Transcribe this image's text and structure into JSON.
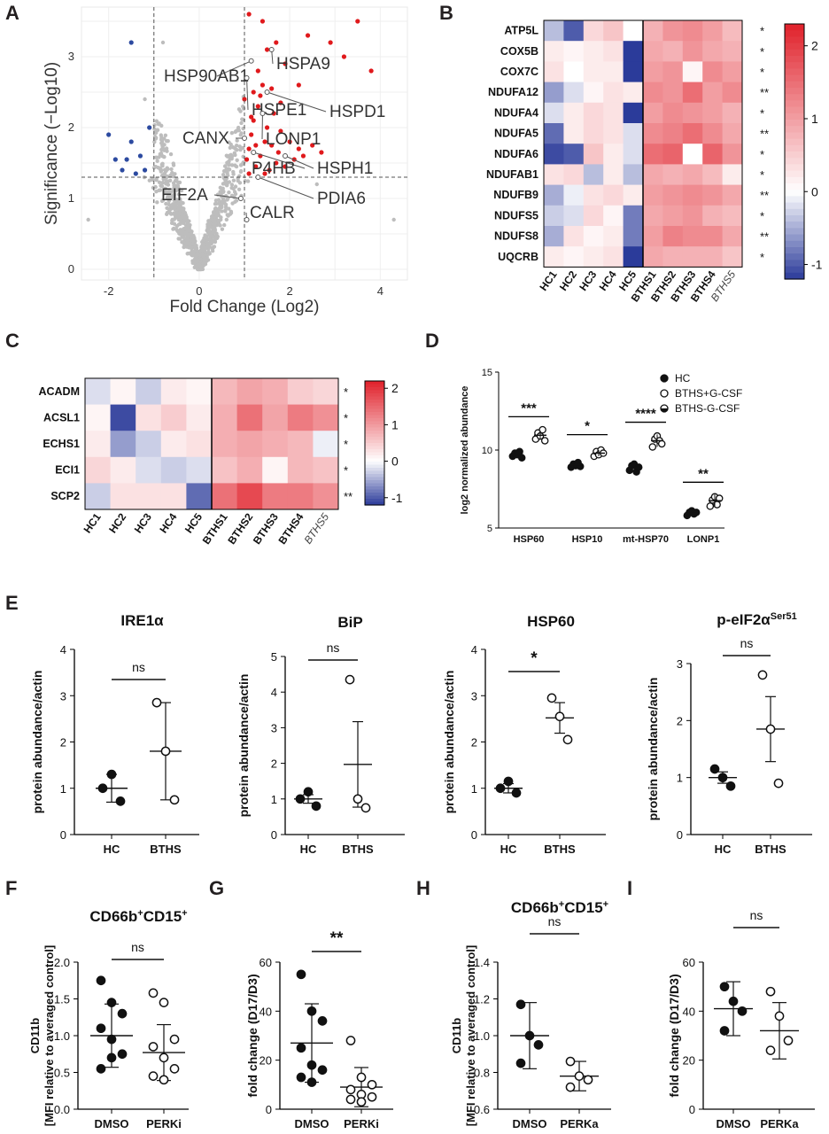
{
  "panel_letters": {
    "A": "A",
    "B": "B",
    "C": "C",
    "D": "D",
    "E": "E",
    "F": "F",
    "G": "G",
    "H": "H",
    "I": "I"
  },
  "colors": {
    "up": "#e0191c",
    "down": "#2c4aa0",
    "ns": "#bdbdbd",
    "heat_low": "#2b3b9a",
    "heat_mid": "#ffffff",
    "heat_high": "#e0202a",
    "text": "#231f20"
  },
  "chart_data": [
    {
      "id": "A",
      "type": "scatter",
      "title": "",
      "xlabel": "Fold Change (Log2)",
      "ylabel": "Significance (−Log10)",
      "xlim": [
        -2.6,
        4.6
      ],
      "ylim": [
        -0.15,
        3.7
      ],
      "xticks": [
        "-2",
        "0",
        "2",
        "4"
      ],
      "yticks": [
        "0",
        "1",
        "2",
        "3"
      ],
      "thresholds": {
        "fc": [
          -1,
          1
        ],
        "sig": 1.3
      },
      "grid": true,
      "up_points": [
        [
          1.05,
          1.55
        ],
        [
          1.1,
          1.7
        ],
        [
          1.15,
          1.9
        ],
        [
          1.2,
          2.1
        ],
        [
          1.25,
          1.45
        ],
        [
          1.3,
          2.3
        ],
        [
          1.35,
          1.6
        ],
        [
          1.4,
          2.6
        ],
        [
          1.45,
          1.8
        ],
        [
          1.5,
          2.0
        ],
        [
          1.55,
          1.4
        ],
        [
          1.6,
          1.75
        ],
        [
          1.65,
          2.2
        ],
        [
          1.7,
          1.5
        ],
        [
          1.75,
          1.65
        ],
        [
          1.8,
          1.95
        ],
        [
          1.9,
          1.45
        ],
        [
          2.0,
          1.8
        ],
        [
          2.1,
          1.55
        ],
        [
          2.2,
          1.7
        ],
        [
          2.3,
          1.6
        ],
        [
          2.5,
          1.75
        ],
        [
          2.7,
          1.65
        ],
        [
          1.2,
          2.5
        ],
        [
          1.3,
          2.8
        ],
        [
          1.5,
          3.1
        ],
        [
          1.7,
          3.2
        ],
        [
          1.9,
          2.9
        ],
        [
          2.2,
          2.6
        ],
        [
          2.4,
          3.3
        ],
        [
          2.9,
          3.2
        ],
        [
          3.2,
          3.0
        ],
        [
          3.5,
          3.5
        ],
        [
          1.1,
          3.8
        ],
        [
          1.4,
          3.5
        ],
        [
          1.0,
          2.4
        ],
        [
          1.15,
          2.15
        ],
        [
          1.25,
          1.75
        ],
        [
          1.35,
          2.45
        ],
        [
          1.6,
          2.55
        ],
        [
          1.8,
          2.35
        ],
        [
          1.1,
          1.35
        ],
        [
          1.45,
          1.35
        ],
        [
          3.8,
          2.8
        ]
      ],
      "down_points": [
        [
          -1.5,
          3.2
        ],
        [
          -2.0,
          1.9
        ],
        [
          -1.7,
          1.4
        ],
        [
          -1.5,
          1.8
        ],
        [
          -1.3,
          1.6
        ],
        [
          -1.2,
          1.4
        ],
        [
          -1.6,
          1.55
        ],
        [
          -1.85,
          1.55
        ],
        [
          -1.1,
          2.0
        ],
        [
          -1.4,
          1.35
        ]
      ],
      "labels": [
        {
          "text": "HSP90AB1",
          "tx": "hsp90ab1",
          "x": 1.15,
          "y": 2.94
        },
        {
          "text": "HSPA9",
          "tx": "hspa9",
          "x": 1.6,
          "y": 3.1
        },
        {
          "text": "HSPE1",
          "tx": "hspe1",
          "x": 1.05,
          "y": 2.7
        },
        {
          "text": "HSPD1",
          "tx": "hspd1",
          "x": 1.5,
          "y": 2.5
        },
        {
          "text": "CANX",
          "tx": "canx",
          "x": 1.0,
          "y": 1.85
        },
        {
          "text": "LONP1",
          "tx": "lonp1",
          "x": 1.4,
          "y": 2.2
        },
        {
          "text": "P4HB",
          "tx": "p4hb",
          "x": 1.2,
          "y": 1.65
        },
        {
          "text": "HSPH1",
          "tx": "hsph1",
          "x": 1.9,
          "y": 1.6
        },
        {
          "text": "EIF2A",
          "tx": "eif2a",
          "x": 0.92,
          "y": 1.0
        },
        {
          "text": "PDIA6",
          "tx": "pdia6",
          "x": 1.3,
          "y": 1.3
        },
        {
          "text": "CALR",
          "tx": "calr",
          "x": 1.05,
          "y": 0.7
        }
      ]
    },
    {
      "id": "B",
      "type": "heatmap",
      "rows": [
        "ATP5L",
        "COX5B",
        "COX7C",
        "NDUFA12",
        "NDUFA4",
        "NDUFA5",
        "NDUFA6",
        "NDUFAB1",
        "NDUFB9",
        "NDUFS5",
        "NDUFS8",
        "UQCRB"
      ],
      "cols": [
        "HC1",
        "HC2",
        "HC3",
        "HC4",
        "HC5",
        "BTHS1",
        "BTHS2",
        "BTHS3",
        "BTHS4",
        "BTHS5"
      ],
      "sig": [
        "*",
        "*",
        "*",
        "**",
        "*",
        "**",
        "*",
        "*",
        "**",
        "*",
        "**",
        "*"
      ],
      "values": [
        [
          -0.4,
          -1.0,
          0.4,
          0.6,
          0.0,
          0.8,
          1.1,
          1.2,
          1.0,
          0.7
        ],
        [
          0.2,
          0.1,
          0.2,
          0.3,
          -1.2,
          0.9,
          0.8,
          1.1,
          0.9,
          0.8
        ],
        [
          0.3,
          0.0,
          0.2,
          0.2,
          -1.3,
          1.0,
          1.1,
          0.1,
          1.2,
          1.0
        ],
        [
          -0.6,
          -0.2,
          0.1,
          0.3,
          0.2,
          1.2,
          1.1,
          1.5,
          1.0,
          1.2
        ],
        [
          -0.2,
          0.2,
          0.4,
          0.3,
          -1.2,
          1.0,
          1.2,
          1.1,
          1.0,
          0.8
        ],
        [
          -0.9,
          0.2,
          0.4,
          0.3,
          -0.2,
          1.2,
          1.3,
          1.5,
          1.2,
          0.9
        ],
        [
          -1.1,
          -1.0,
          0.6,
          0.2,
          -0.2,
          1.5,
          1.6,
          0.0,
          1.6,
          1.1
        ],
        [
          0.3,
          0.4,
          -0.4,
          0.2,
          -0.4,
          0.9,
          0.8,
          0.9,
          0.7,
          0.2
        ],
        [
          -0.5,
          -0.1,
          0.3,
          0.4,
          0.2,
          1.0,
          1.1,
          1.2,
          1.1,
          0.9
        ],
        [
          -0.3,
          -0.2,
          0.4,
          0.1,
          -0.8,
          0.9,
          1.0,
          1.1,
          0.8,
          0.7
        ],
        [
          -0.5,
          0.3,
          0.1,
          0.2,
          -0.8,
          1.0,
          1.3,
          1.2,
          1.2,
          0.9
        ],
        [
          0.2,
          0.1,
          0.2,
          0.3,
          -1.2,
          0.9,
          0.8,
          0.8,
          0.8,
          0.6
        ]
      ],
      "colorbar_ticks": [
        "2",
        "1",
        "0",
        "-1"
      ],
      "vmin": -1.2,
      "vmax": 2.3
    },
    {
      "id": "C",
      "type": "heatmap",
      "rows": [
        "ACADM",
        "ACSL1",
        "ECHS1",
        "ECI1",
        "SCP2"
      ],
      "cols": [
        "HC1",
        "HC2",
        "HC3",
        "HC4",
        "HC5",
        "BTHS1",
        "BTHS2",
        "BTHS3",
        "BTHS4",
        "BTHS5"
      ],
      "sig": [
        "*",
        "*",
        "*",
        "*",
        "**"
      ],
      "values": [
        [
          -0.2,
          0.1,
          -0.3,
          0.2,
          0.1,
          0.7,
          0.9,
          0.8,
          0.5,
          0.4
        ],
        [
          0.1,
          -1.1,
          0.3,
          0.5,
          0.2,
          0.8,
          1.4,
          0.9,
          1.3,
          1.1
        ],
        [
          0.2,
          -0.6,
          -0.3,
          0.2,
          0.3,
          0.8,
          0.9,
          0.8,
          0.7,
          -0.1
        ],
        [
          0.4,
          0.2,
          -0.2,
          -0.3,
          -0.2,
          0.6,
          0.8,
          0.1,
          0.7,
          0.6
        ],
        [
          -0.3,
          0.3,
          0.3,
          0.3,
          -0.9,
          1.4,
          1.8,
          1.3,
          1.3,
          1.1
        ]
      ],
      "colorbar_ticks": [
        "2",
        "1",
        "0",
        "-1"
      ],
      "vmin": -1.2,
      "vmax": 2.2
    },
    {
      "id": "D",
      "type": "scatter",
      "ylabel": "log2 normalized abundance",
      "ylim": [
        5,
        15
      ],
      "yticks": [
        "5",
        "10",
        "15"
      ],
      "categories": [
        "HSP60",
        "HSP10",
        "mt-HSP70",
        "LONP1"
      ],
      "legend": [
        "HC",
        "BTHS+G-CSF",
        "BTHS-G-CSF"
      ],
      "significance": [
        "***",
        "*",
        "****",
        "**"
      ],
      "groups": [
        {
          "cat": "HSP60",
          "hc": [
            9.6,
            9.8,
            9.7,
            9.9,
            9.5
          ],
          "hc_mean": 9.7,
          "hc_sd": 0.15,
          "b": [
            10.7,
            11.1,
            10.9,
            11.3,
            10.6
          ],
          "b_mean": 10.95,
          "b_sd": 0.3
        },
        {
          "cat": "HSP10",
          "hc": [
            8.9,
            9.1,
            9.0,
            9.2,
            8.95
          ],
          "hc_mean": 9.05,
          "hc_sd": 0.12,
          "b": [
            9.6,
            9.9,
            9.7,
            10.0,
            9.8
          ],
          "b_mean": 9.8,
          "b_sd": 0.2
        },
        {
          "cat": "mt-HSP70",
          "hc": [
            8.7,
            9.0,
            9.1,
            8.6,
            8.9
          ],
          "hc_mean": 8.85,
          "hc_sd": 0.35,
          "b": [
            10.2,
            10.7,
            10.9,
            10.6,
            10.4
          ],
          "b_mean": 10.6,
          "b_sd": 0.4
        },
        {
          "cat": "LONP1",
          "hc": [
            5.8,
            6.0,
            6.1,
            5.9,
            6.0
          ],
          "hc_mean": 5.95,
          "hc_sd": 0.15,
          "b": [
            6.4,
            6.8,
            7.0,
            6.5,
            6.9
          ],
          "b_mean": 6.75,
          "b_sd": 0.4
        }
      ]
    },
    {
      "id": "E1",
      "type": "scatter",
      "title": "IRE1α",
      "ylabel": "protein abundance/actin",
      "ylim": [
        0,
        4
      ],
      "yticks": [
        "0",
        "1",
        "2",
        "3",
        "4"
      ],
      "categories": [
        "HC",
        "BTHS"
      ],
      "sig": "ns",
      "hc": [
        1.0,
        1.3,
        0.72
      ],
      "hc_mean": 1.0,
      "hc_err": 0.3,
      "bt": [
        2.85,
        1.8,
        0.75
      ],
      "bt_mean": 1.8,
      "bt_err": 1.05
    },
    {
      "id": "E2",
      "type": "scatter",
      "title": "BiP",
      "ylabel": "protein abundance/actin",
      "ylim": [
        0,
        5
      ],
      "yticks": [
        "0",
        "1",
        "2",
        "3",
        "4",
        "5"
      ],
      "categories": [
        "HC",
        "BTHS"
      ],
      "sig": "ns",
      "hc": [
        1.0,
        1.2,
        0.8
      ],
      "hc_mean": 1.0,
      "hc_err": 0.12,
      "bt": [
        4.35,
        1.0,
        0.75
      ],
      "bt_mean": 1.97,
      "bt_err": 1.2
    },
    {
      "id": "E3",
      "type": "scatter",
      "title": "HSP60",
      "ylabel": "protein abundance/actin",
      "ylim": [
        0,
        4
      ],
      "yticks": [
        "0",
        "1",
        "2",
        "3",
        "4"
      ],
      "categories": [
        "HC",
        "BTHS"
      ],
      "sig": "*",
      "hc": [
        1.0,
        1.15,
        0.9
      ],
      "hc_mean": 1.0,
      "hc_err": 0.1,
      "bt": [
        2.95,
        2.55,
        2.05
      ],
      "bt_mean": 2.52,
      "bt_err": 0.33
    },
    {
      "id": "E4",
      "type": "scatter",
      "title": "p-eIF2α",
      "title_sup": "Ser51",
      "ylabel": "protein abundance/actin",
      "ylim": [
        0,
        3
      ],
      "yticks": [
        "0",
        "1",
        "2",
        "3"
      ],
      "categories": [
        "HC",
        "BTHS"
      ],
      "sig": "ns",
      "hc": [
        1.15,
        1.0,
        0.85
      ],
      "hc_mean": 1.0,
      "hc_err": 0.1,
      "bt": [
        2.8,
        1.85,
        0.9
      ],
      "bt_mean": 1.85,
      "bt_err": 0.57
    },
    {
      "id": "F",
      "type": "scatter",
      "title": "CD66b",
      "title_sup": "+",
      "title2": "CD15",
      "title2_sup": "+",
      "ylabel": "CD11b",
      "ylabel2": "[MFI relative to averaged control]",
      "ylim": [
        0,
        2
      ],
      "yticks": [
        "0.0",
        "0.5",
        "1.0",
        "1.5",
        "2.0"
      ],
      "categories": [
        "DMSO",
        "PERKi"
      ],
      "sig": "ns",
      "left": [
        1.75,
        1.45,
        1.3,
        1.1,
        0.95,
        0.75,
        0.55,
        0.7
      ],
      "left_mean": 1.0,
      "left_err": 0.43,
      "right": [
        1.58,
        1.45,
        0.95,
        0.85,
        0.7,
        0.55,
        0.45,
        0.4
      ],
      "right_mean": 0.77,
      "right_err": 0.38
    },
    {
      "id": "G",
      "type": "scatter",
      "ylabel": "fold change (D17/D3)",
      "ylim": [
        0,
        60
      ],
      "yticks": [
        "0",
        "20",
        "40",
        "60"
      ],
      "categories": [
        "DMSO",
        "PERKi"
      ],
      "sig": "**",
      "left": [
        55,
        40,
        36,
        25,
        18,
        16,
        13,
        11
      ],
      "left_mean": 27,
      "left_err": 16,
      "right": [
        28,
        13,
        10,
        8,
        6,
        5,
        4,
        3
      ],
      "right_mean": 9,
      "right_err": 8
    },
    {
      "id": "H",
      "type": "scatter",
      "title": "CD66b",
      "title_sup": "+",
      "title2": "CD15",
      "title2_sup": "+",
      "ylabel": "CD11b",
      "ylabel2": "[MFI relative to averaged control]",
      "ylim": [
        0.6,
        1.4
      ],
      "yticks": [
        "0.6",
        "0.8",
        "1.0",
        "1.2",
        "1.4"
      ],
      "categories": [
        "DMSO",
        "PERKa"
      ],
      "sig": "ns",
      "left": [
        1.17,
        1.0,
        0.95,
        0.85
      ],
      "left_mean": 1.0,
      "left_err": 0.18,
      "right": [
        0.86,
        0.78,
        0.76,
        0.72
      ],
      "right_mean": 0.78,
      "right_err": 0.08
    },
    {
      "id": "I",
      "type": "scatter",
      "ylabel": "fold change (D17/D3)",
      "ylim": [
        0,
        60
      ],
      "yticks": [
        "0",
        "20",
        "40",
        "60"
      ],
      "categories": [
        "DMSO",
        "PERKa"
      ],
      "sig": "ns",
      "left": [
        50,
        44,
        40,
        32
      ],
      "left_mean": 41,
      "left_err": 11,
      "right": [
        48,
        38,
        28,
        24
      ],
      "right_mean": 32,
      "right_err": 11.5
    }
  ]
}
